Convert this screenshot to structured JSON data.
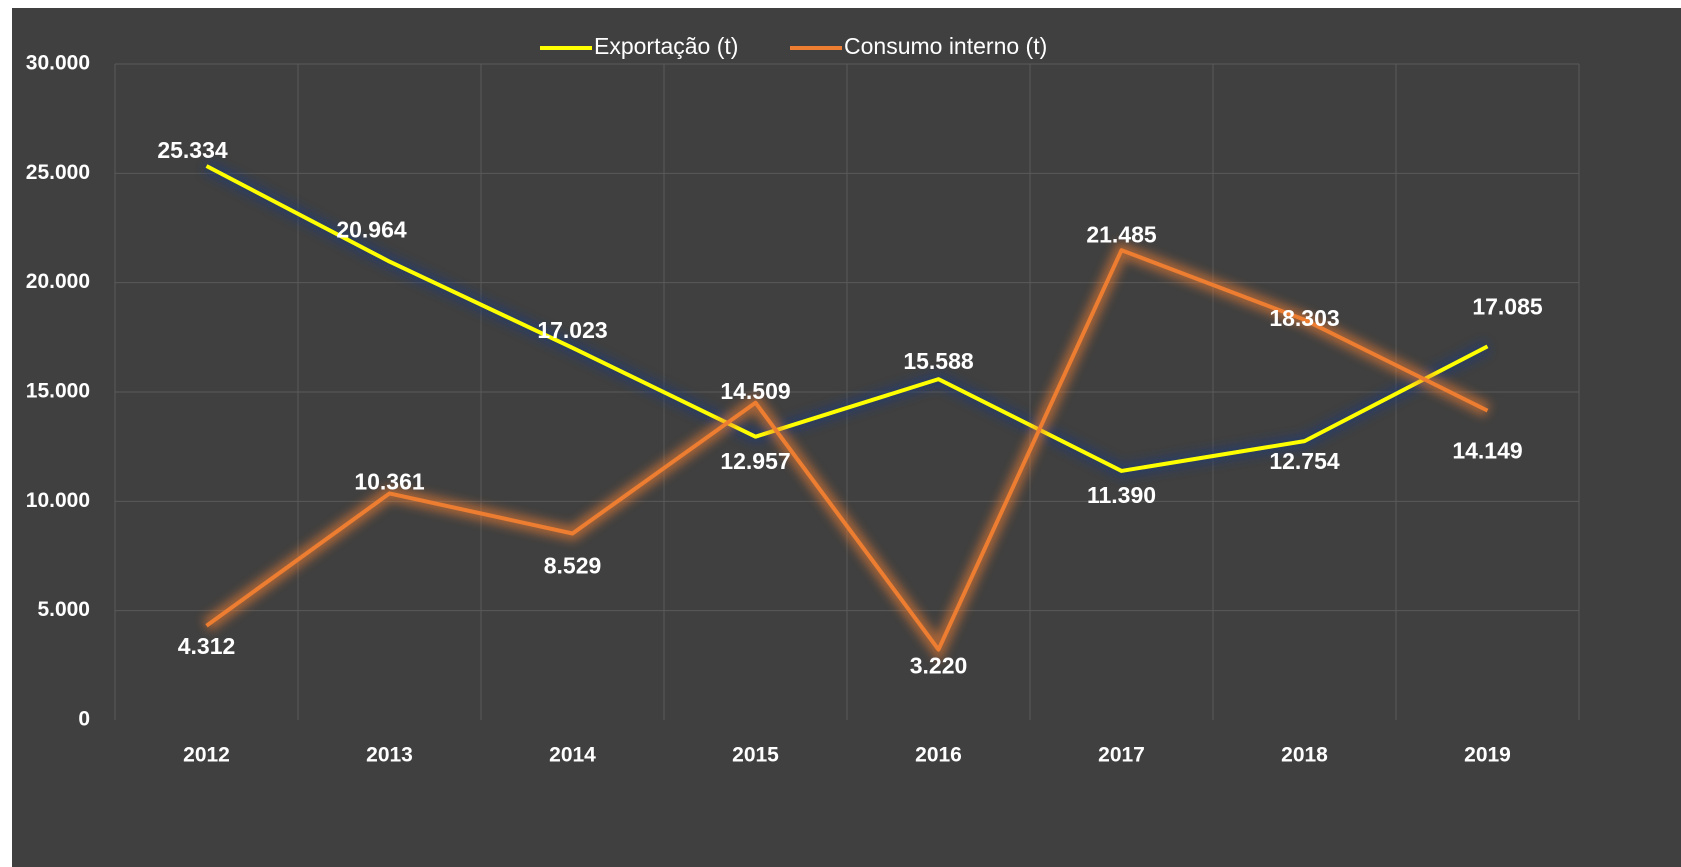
{
  "chart_data": {
    "type": "line",
    "categories": [
      "2012",
      "2013",
      "2014",
      "2015",
      "2016",
      "2017",
      "2018",
      "2019"
    ],
    "series": [
      {
        "name": "Exportação (t)",
        "color": "#ffff00",
        "values": [
          25334,
          20964,
          17023,
          12957,
          15588,
          11390,
          12754,
          17085
        ],
        "value_labels": [
          "25.334",
          "20.964",
          "17.023",
          "12.957",
          "15.588",
          "11.390",
          "12.754",
          "17.085"
        ]
      },
      {
        "name": "Consumo interno (t)",
        "color": "#ed7d31",
        "values": [
          4312,
          10361,
          8529,
          14509,
          3220,
          21485,
          18303,
          14149
        ],
        "value_labels": [
          "4.312",
          "10.361",
          "8.529",
          "14.509",
          "3.220",
          "21.485",
          "18.303",
          "14.149"
        ]
      }
    ],
    "ylim": [
      0,
      30000
    ],
    "yticks": [
      0,
      {
        "value": 5000,
        "label": "5.000"
      },
      {
        "value": 10000,
        "label": "10.000"
      },
      {
        "value": 15000,
        "label": "15.000"
      },
      {
        "value": 20000,
        "label": "20.000"
      },
      {
        "value": 25000,
        "label": "25.000"
      },
      {
        "value": 30000,
        "label": "30.000"
      }
    ],
    "grid": true,
    "legend": "top"
  }
}
